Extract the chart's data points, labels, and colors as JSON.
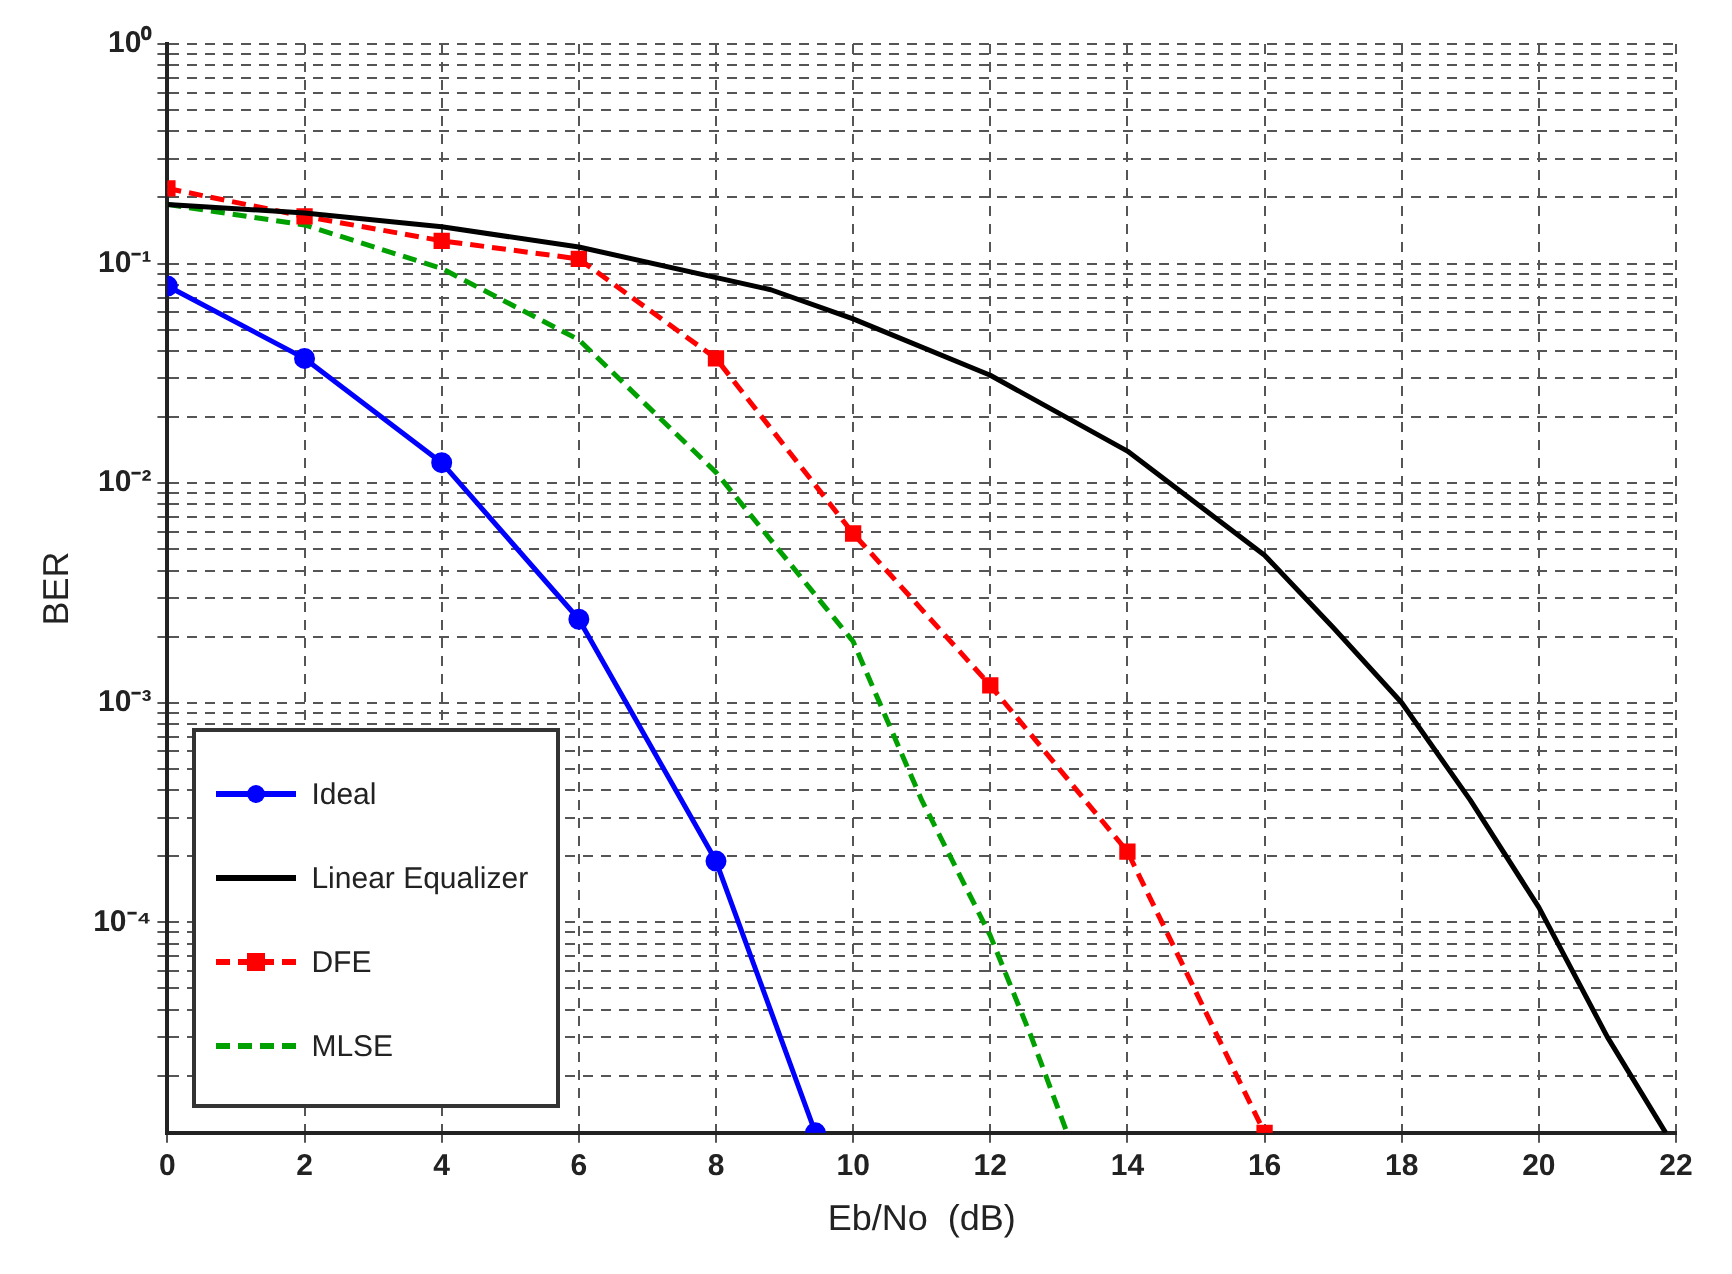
{
  "chart_data": {
    "type": "line",
    "xlabel": "Eb/No  (dB)",
    "ylabel": "BER",
    "log": "y",
    "grid": true,
    "legend": "bottom left",
    "xlim": [
      0,
      22
    ],
    "xticks": [
      0,
      2,
      4,
      6,
      8,
      10,
      12,
      14,
      16,
      18,
      20,
      22
    ],
    "ylim": [
      1.1e-05,
      1
    ],
    "yticks": [
      {
        "value": 2e-05,
        "label": null
      },
      {
        "value": 3e-05,
        "label": null
      },
      {
        "value": 4e-05,
        "label": null
      },
      {
        "value": 5e-05,
        "label": null
      },
      {
        "value": 6e-05,
        "label": null
      },
      {
        "value": 7e-05,
        "label": null
      },
      {
        "value": 8e-05,
        "label": null
      },
      {
        "value": 9e-05,
        "label": null
      },
      {
        "value": 0.0001,
        "label": "10⁻⁴"
      },
      {
        "value": 0.0002,
        "label": null
      },
      {
        "value": 0.0003,
        "label": null
      },
      {
        "value": 0.0004,
        "label": null
      },
      {
        "value": 0.0005,
        "label": null
      },
      {
        "value": 0.0006,
        "label": null
      },
      {
        "value": 0.0007,
        "label": null
      },
      {
        "value": 0.0008,
        "label": null
      },
      {
        "value": 0.0009,
        "label": null
      },
      {
        "value": 0.001,
        "label": "10⁻³"
      },
      {
        "value": 0.002,
        "label": null
      },
      {
        "value": 0.003,
        "label": null
      },
      {
        "value": 0.004,
        "label": null
      },
      {
        "value": 0.005,
        "label": null
      },
      {
        "value": 0.006,
        "label": null
      },
      {
        "value": 0.007,
        "label": null
      },
      {
        "value": 0.008,
        "label": null
      },
      {
        "value": 0.009,
        "label": null
      },
      {
        "value": 0.01,
        "label": "10⁻²"
      },
      {
        "value": 0.02,
        "label": null
      },
      {
        "value": 0.03,
        "label": null
      },
      {
        "value": 0.04,
        "label": null
      },
      {
        "value": 0.05,
        "label": null
      },
      {
        "value": 0.06,
        "label": null
      },
      {
        "value": 0.07,
        "label": null
      },
      {
        "value": 0.08,
        "label": null
      },
      {
        "value": 0.09,
        "label": null
      },
      {
        "value": 0.1,
        "label": "10⁻¹"
      },
      {
        "value": 0.2,
        "label": null
      },
      {
        "value": 0.3,
        "label": null
      },
      {
        "value": 0.4,
        "label": null
      },
      {
        "value": 0.5,
        "label": null
      },
      {
        "value": 0.6,
        "label": null
      },
      {
        "value": 0.7,
        "label": null
      },
      {
        "value": 0.8,
        "label": null
      },
      {
        "value": 0.9,
        "label": null
      },
      {
        "value": 1,
        "label": "10⁰"
      }
    ],
    "series": [
      {
        "name": "Ideal",
        "color": "#0000ff",
        "marker": "circle",
        "line_style": "solid",
        "x": [
          0,
          2,
          4,
          6,
          8,
          9.45
        ],
        "values": [
          0.079,
          0.037,
          0.0124,
          0.0024,
          0.00019,
          1.1e-05
        ]
      },
      {
        "name": "Linear Equalizer",
        "color": "#000000",
        "marker": "none",
        "line_style": "solid",
        "x": [
          0,
          2,
          4,
          6,
          8.8,
          10,
          12,
          14,
          16,
          17,
          18,
          19,
          20,
          21,
          21.85
        ],
        "values": [
          0.186,
          0.17,
          0.147,
          0.119,
          0.076,
          0.056,
          0.031,
          0.014,
          0.0047,
          0.0022,
          0.001,
          0.00036,
          0.000117,
          3e-05,
          1.1e-05
        ]
      },
      {
        "name": "DFE",
        "color": "#ff0000",
        "marker": "square",
        "line_style": "dashed",
        "x": [
          0,
          2,
          4,
          6,
          8,
          10,
          12,
          14,
          16
        ],
        "values": [
          0.22,
          0.164,
          0.127,
          0.105,
          0.037,
          0.0059,
          0.0012,
          0.00021,
          1.1e-05
        ]
      },
      {
        "name": "MLSE",
        "color": "#00a000",
        "marker": "none",
        "line_style": "dashed",
        "x": [
          0,
          2,
          4,
          6,
          8,
          10,
          11,
          12,
          12.6,
          13.12
        ],
        "values": [
          0.186,
          0.15,
          0.095,
          0.045,
          0.0112,
          0.0019,
          0.00036,
          8.7e-05,
          3e-05,
          1.1e-05
        ]
      }
    ]
  }
}
